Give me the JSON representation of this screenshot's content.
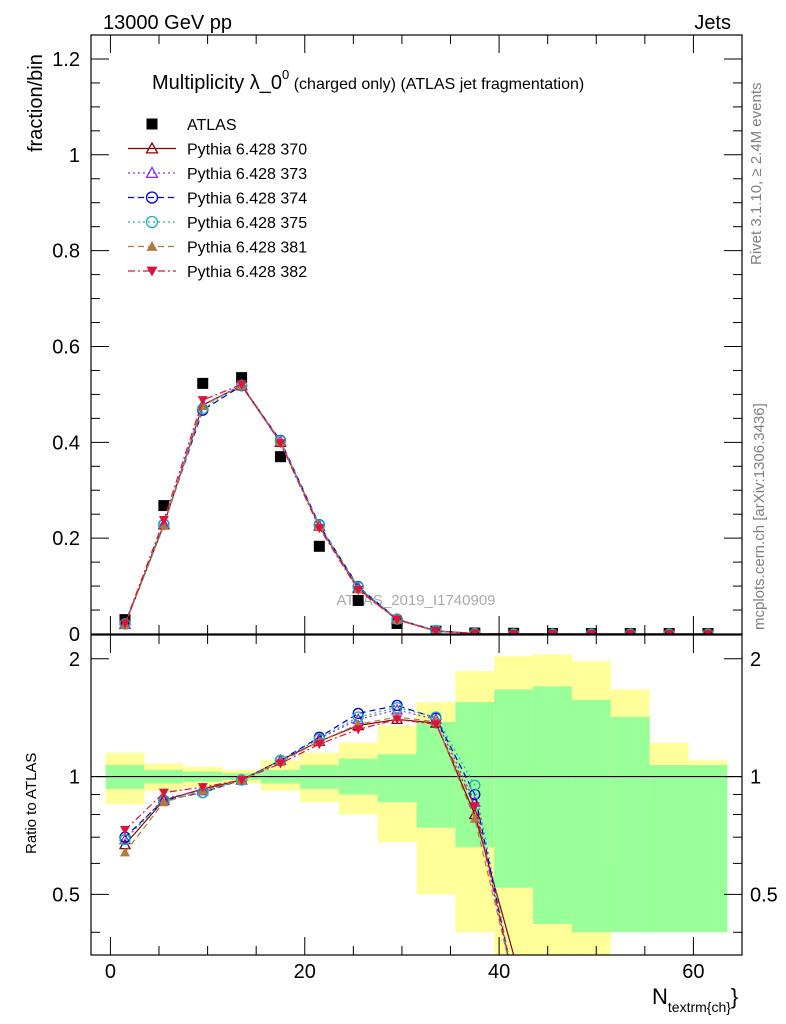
{
  "header": {
    "left": "13000 GeV pp",
    "right": "Jets",
    "side_top": "Rivet 3.1.10, ≥ 2.4M events",
    "side_bottom": "mcplots.cern.ch [arXiv:1306.3436]",
    "watermark": "ATLAS_2019_I1740909"
  },
  "chart_data": [
    {
      "type": "scatter",
      "panel": "main",
      "title_main": "Multiplicity λ_0",
      "title_sup": "0",
      "title_rest": " (charged only) (ATLAS jet fragmentation)",
      "ylabel": "fraction/bin",
      "xlim": [
        -2,
        65
      ],
      "ylim": [
        0,
        1.25
      ],
      "yticks": [
        0,
        0.2,
        0.4,
        0.6,
        0.8,
        1,
        1.2
      ],
      "ytick_labels": [
        "0",
        "0.2",
        "0.4",
        "0.6",
        "0.8",
        "1",
        "1.2"
      ],
      "x": [
        1.5,
        5.5,
        9.5,
        13.5,
        17.5,
        21.5,
        25.5,
        29.5,
        33.5,
        37.5,
        41.5,
        45.5,
        49.5,
        53.5,
        57.5,
        61.5
      ],
      "series": [
        {
          "name": "ATLAS",
          "color": "#000000",
          "marker": "square",
          "line": "none",
          "values": [
            0.03,
            0.268,
            0.523,
            0.535,
            0.37,
            0.183,
            0.07,
            0.022,
            0.006,
            0.002,
            0.0015,
            0.001,
            0.001,
            0.001,
            0.001,
            0.001
          ]
        },
        {
          "name": "Pythia 6.428 370",
          "color": "#8b0000",
          "marker": "triangle-open",
          "line": "solid",
          "values": [
            0.02,
            0.228,
            0.478,
            0.518,
            0.4,
            0.225,
            0.095,
            0.03,
            0.006,
            0.001,
            0.0005,
            0,
            0,
            0,
            0,
            0
          ]
        },
        {
          "name": "Pythia 6.428 373",
          "color": "#8a2be2",
          "marker": "triangle-open",
          "line": "dotted",
          "values": [
            0.021,
            0.23,
            0.477,
            0.52,
            0.402,
            0.226,
            0.097,
            0.031,
            0.007,
            0.001,
            0,
            0,
            0,
            0,
            0,
            0
          ]
        },
        {
          "name": "Pythia 6.428 374",
          "color": "#0000cd",
          "marker": "circle-open",
          "line": "dashed",
          "values": [
            0.021,
            0.229,
            0.467,
            0.518,
            0.404,
            0.228,
            0.099,
            0.031,
            0.007,
            0.001,
            0,
            0,
            0,
            0,
            0,
            0
          ]
        },
        {
          "name": "Pythia 6.428 375",
          "color": "#20b2aa",
          "marker": "circle-open",
          "line": "dotted",
          "values": [
            0.021,
            0.229,
            0.47,
            0.519,
            0.403,
            0.227,
            0.098,
            0.031,
            0.007,
            0.001,
            0,
            0,
            0,
            0,
            0,
            0
          ]
        },
        {
          "name": "Pythia 6.428 381",
          "color": "#b07a3f",
          "marker": "triangle-filled",
          "line": "dashed",
          "values": [
            0.019,
            0.226,
            0.476,
            0.519,
            0.401,
            0.224,
            0.093,
            0.03,
            0.006,
            0.001,
            0,
            0,
            0,
            0,
            0,
            0
          ]
        },
        {
          "name": "Pythia 6.428 382",
          "color": "#dc143c",
          "marker": "triangle-down-filled",
          "line": "dashdot",
          "values": [
            0.022,
            0.238,
            0.488,
            0.521,
            0.398,
            0.221,
            0.092,
            0.03,
            0.006,
            0.001,
            0,
            0,
            0,
            0,
            0,
            0
          ]
        }
      ]
    },
    {
      "type": "scatter",
      "panel": "ratio",
      "ylabel": "Ratio to ATLAS",
      "xlabel": "N",
      "xlabel_sub": "textrm{ch}",
      "xlim": [
        -2,
        65
      ],
      "ylim": [
        0.35,
        2.3
      ],
      "yticks": [
        0.5,
        1,
        2
      ],
      "ytick_labels": [
        "0.5",
        "1",
        "2"
      ],
      "xticks": [
        0,
        20,
        40,
        60
      ],
      "xtick_labels": [
        "0",
        "20",
        "40",
        "60"
      ],
      "bands": {
        "edges": [
          -0.5,
          3.5,
          7.5,
          11.5,
          15.5,
          19.5,
          23.5,
          27.5,
          31.5,
          35.5,
          39.5,
          43.5,
          47.5,
          51.5,
          55.5,
          59.5,
          63.5
        ],
        "inner_color": "#99ff99",
        "outer_color": "#ffff99",
        "inner_low": [
          0.93,
          0.96,
          0.97,
          0.98,
          0.96,
          0.93,
          0.9,
          0.86,
          0.74,
          0.66,
          0.52,
          0.42,
          0.4,
          0.4,
          0.4,
          0.4
        ],
        "inner_high": [
          1.07,
          1.04,
          1.03,
          1.02,
          1.04,
          1.07,
          1.11,
          1.14,
          1.38,
          1.55,
          1.67,
          1.7,
          1.57,
          1.42,
          1.07,
          1.07
        ],
        "outer_low": [
          0.85,
          0.92,
          0.94,
          0.96,
          0.92,
          0.86,
          0.8,
          0.68,
          0.5,
          0.4,
          0.3,
          0.3,
          0.3,
          0.6,
          0.85,
          0.88
        ],
        "outer_high": [
          1.15,
          1.08,
          1.06,
          1.04,
          1.1,
          1.15,
          1.22,
          1.35,
          1.55,
          1.86,
          2.03,
          2.05,
          1.97,
          1.67,
          1.22,
          1.1
        ]
      },
      "x": [
        1.5,
        5.5,
        9.5,
        13.5,
        17.5,
        21.5,
        25.5,
        29.5,
        33.5,
        37.5,
        41.5
      ],
      "series": [
        {
          "name": "Pythia 6.428 370",
          "color": "#8b0000",
          "marker": "triangle-open",
          "line": "solid",
          "values": [
            0.67,
            0.87,
            0.93,
            0.98,
            1.1,
            1.23,
            1.35,
            1.4,
            1.37,
            0.8,
            0.35
          ]
        },
        {
          "name": "Pythia 6.428 373",
          "color": "#8a2be2",
          "marker": "triangle-open",
          "line": "dotted",
          "values": [
            0.69,
            0.88,
            0.92,
            0.98,
            1.1,
            1.25,
            1.4,
            1.48,
            1.4,
            0.86,
            0.3
          ]
        },
        {
          "name": "Pythia 6.428 374",
          "color": "#0000cd",
          "marker": "circle-open",
          "line": "dashed",
          "values": [
            0.7,
            0.87,
            0.91,
            0.98,
            1.1,
            1.26,
            1.45,
            1.52,
            1.41,
            0.9,
            0.3
          ]
        },
        {
          "name": "Pythia 6.428 375",
          "color": "#20b2aa",
          "marker": "circle-open",
          "line": "dotted",
          "values": [
            0.69,
            0.87,
            0.91,
            0.98,
            1.1,
            1.25,
            1.42,
            1.5,
            1.42,
            0.95,
            0.3
          ]
        },
        {
          "name": "Pythia 6.428 381",
          "color": "#b07a3f",
          "marker": "triangle-filled",
          "line": "dashed",
          "values": [
            0.64,
            0.86,
            0.92,
            0.98,
            1.09,
            1.23,
            1.36,
            1.42,
            1.38,
            0.78,
            0.3
          ]
        },
        {
          "name": "Pythia 6.428 382",
          "color": "#dc143c",
          "marker": "triangle-down-filled",
          "line": "dashdot",
          "values": [
            0.73,
            0.91,
            0.94,
            0.98,
            1.08,
            1.21,
            1.32,
            1.4,
            1.36,
            0.84,
            0.3
          ]
        }
      ]
    }
  ]
}
